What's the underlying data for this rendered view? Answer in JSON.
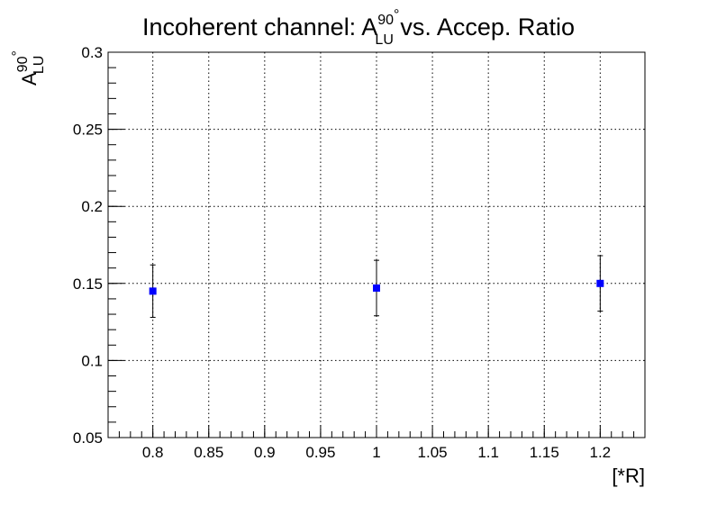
{
  "chart_data": {
    "type": "scatter",
    "title": {
      "prefix": "Incoherent channel: A",
      "sup": "90",
      "degree": "°",
      "sub": "LU",
      "suffix": " vs. Accep. Ratio"
    },
    "ylabel": {
      "main": "A",
      "sup": "90",
      "degree": "°",
      "sub": "LU"
    },
    "xlabel": "[*R]",
    "xlim": [
      0.76,
      1.24
    ],
    "ylim": [
      0.05,
      0.3
    ],
    "x_ticks": [
      "0.8",
      "0.85",
      "0.9",
      "0.95",
      "1",
      "1.05",
      "1.1",
      "1.15",
      "1.2"
    ],
    "y_ticks": [
      "0.05",
      "0.1",
      "0.15",
      "0.2",
      "0.25",
      "0.3"
    ],
    "grid": true,
    "marker_color": "#0000ff",
    "points": [
      {
        "x": 0.8,
        "y": 0.145,
        "err": 0.017
      },
      {
        "x": 1.0,
        "y": 0.147,
        "err": 0.018
      },
      {
        "x": 1.2,
        "y": 0.15,
        "err": 0.018
      }
    ]
  }
}
